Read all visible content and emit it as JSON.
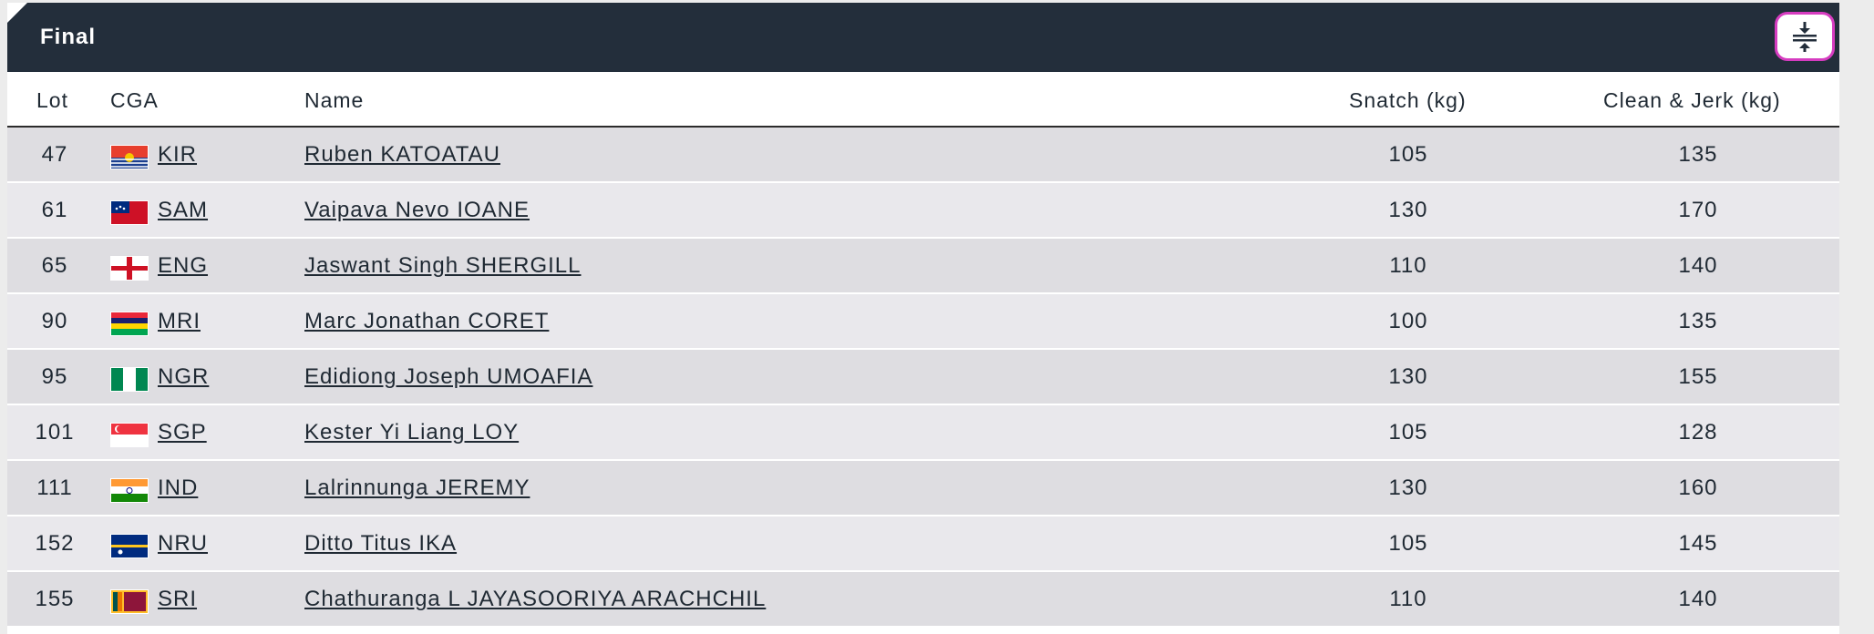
{
  "panel": {
    "title": "Final",
    "toggle_icon": "collapse-vertical-icon",
    "accent": "#d63cc0",
    "header_bg": "#232e3b"
  },
  "columns": {
    "lot": "Lot",
    "cga": "CGA",
    "name": "Name",
    "snatch": "Snatch (kg)",
    "cj": "Clean & Jerk (kg)"
  },
  "rows": [
    {
      "lot": "47",
      "cga": "KIR",
      "name": "Ruben KATOATAU",
      "snatch": "105",
      "cj": "135"
    },
    {
      "lot": "61",
      "cga": "SAM",
      "name": "Vaipava Nevo IOANE",
      "snatch": "130",
      "cj": "170"
    },
    {
      "lot": "65",
      "cga": "ENG",
      "name": "Jaswant Singh SHERGILL",
      "snatch": "110",
      "cj": "140"
    },
    {
      "lot": "90",
      "cga": "MRI",
      "name": "Marc Jonathan CORET",
      "snatch": "100",
      "cj": "135"
    },
    {
      "lot": "95",
      "cga": "NGR",
      "name": "Edidiong Joseph UMOAFIA",
      "snatch": "130",
      "cj": "155"
    },
    {
      "lot": "101",
      "cga": "SGP",
      "name": "Kester Yi Liang LOY",
      "snatch": "105",
      "cj": "128"
    },
    {
      "lot": "111",
      "cga": "IND",
      "name": "Lalrinnunga JEREMY",
      "snatch": "130",
      "cj": "160"
    },
    {
      "lot": "152",
      "cga": "NRU",
      "name": "Ditto Titus IKA",
      "snatch": "105",
      "cj": "145"
    },
    {
      "lot": "155",
      "cga": "SRI",
      "name": "Chathuranga L JAYASOORIYA ARACHCHIL",
      "snatch": "110",
      "cj": "140"
    }
  ]
}
